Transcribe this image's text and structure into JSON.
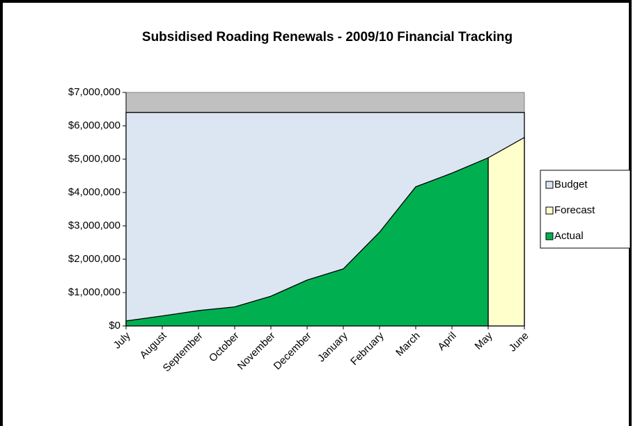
{
  "chart_data": {
    "type": "area",
    "title": "Subsidised  Roading Renewals - 2009/10 Financial Tracking",
    "categories": [
      "July",
      "August",
      "September",
      "October",
      "November",
      "December",
      "January",
      "February",
      "March",
      "April",
      "May",
      "June"
    ],
    "series": [
      {
        "name": "Budget",
        "color": "#dce6f2",
        "values": [
          6400000,
          6400000,
          6400000,
          6400000,
          6400000,
          6400000,
          6400000,
          6400000,
          6400000,
          6400000,
          6400000,
          6400000
        ]
      },
      {
        "name": "Forecast",
        "color": "#ffffcc",
        "values": [
          null,
          null,
          null,
          null,
          null,
          null,
          null,
          null,
          null,
          null,
          5040000,
          5650000
        ]
      },
      {
        "name": "Actual",
        "color": "#00b050",
        "values": [
          150000,
          300000,
          460000,
          570000,
          890000,
          1375000,
          1710000,
          2810000,
          4170000,
          4580000,
          5040000,
          null
        ]
      }
    ],
    "ylim": [
      0,
      7000000
    ],
    "yticks": [
      {
        "value": 0,
        "label": "$0"
      },
      {
        "value": 1000000,
        "label": "$1,000,000"
      },
      {
        "value": 2000000,
        "label": "$2,000,000"
      },
      {
        "value": 3000000,
        "label": "$3,000,000"
      },
      {
        "value": 4000000,
        "label": "$4,000,000"
      },
      {
        "value": 5000000,
        "label": "$5,000,000"
      },
      {
        "value": 6000000,
        "label": "$6,000,000"
      },
      {
        "value": 7000000,
        "label": "$7,000,000"
      }
    ],
    "plot_background": "#c0c0c0",
    "legend": "right"
  }
}
